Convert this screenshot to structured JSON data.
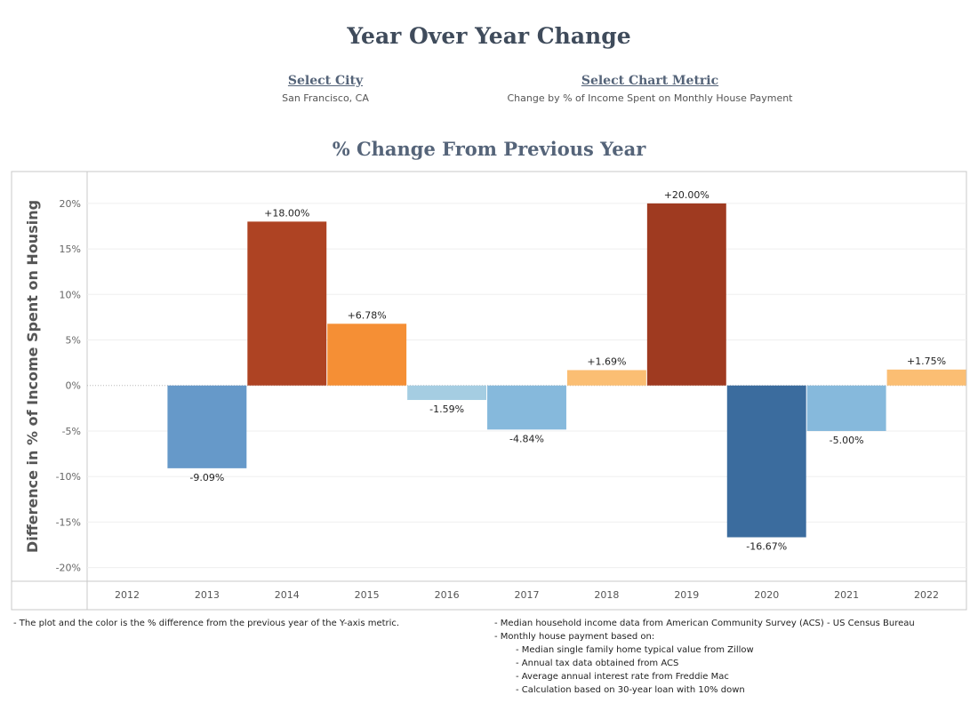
{
  "page": {
    "title": "Year Over Year Change"
  },
  "selectors": {
    "city": {
      "label": "Select City",
      "value": "San Francisco, CA"
    },
    "metric": {
      "label": "Select Chart Metric",
      "value": "Change by % of Income Spent on Monthly House Payment"
    }
  },
  "chart_data": {
    "type": "bar",
    "title": "% Change From Previous Year",
    "xlabel": "",
    "ylabel": "Difference in % of Income Spent on Housing",
    "categories": [
      "2012",
      "2013",
      "2014",
      "2015",
      "2016",
      "2017",
      "2018",
      "2019",
      "2020",
      "2021",
      "2022"
    ],
    "values": [
      null,
      -9.09,
      18.0,
      6.78,
      -1.59,
      -4.84,
      1.69,
      20.0,
      -16.67,
      -5.0,
      1.75
    ],
    "data_labels": [
      "",
      "-9.09%",
      "+18.00%",
      "+6.78%",
      "-1.59%",
      "-4.84%",
      "+1.69%",
      "+20.00%",
      "-16.67%",
      "-5.00%",
      "+1.75%"
    ],
    "colors": [
      "",
      "#6699c9",
      "#ae4323",
      "#f58f35",
      "#a5cde2",
      "#86b9dc",
      "#fbbe73",
      "#9f3a20",
      "#3b6c9e",
      "#86b9dc",
      "#fbbe73"
    ],
    "ylim": [
      -21.5,
      23.5
    ],
    "yticks": [
      20,
      15,
      10,
      5,
      0,
      -5,
      -10,
      -15,
      -20
    ],
    "ytick_labels": [
      "20%",
      "15%",
      "10%",
      "5%",
      "0%",
      "-5%",
      "-10%",
      "-15%",
      "-20%"
    ],
    "grid": true,
    "legend": "none"
  },
  "footer": {
    "left": [
      "- The plot and the color is the % difference from the previous year of the Y-axis metric."
    ],
    "right": [
      "- Median household income data from American Community Survey (ACS) - US Census Bureau",
      "- Monthly house payment based on:"
    ],
    "right_sub": [
      "- Median single family home typical value from Zillow",
      "- Annual tax data obtained from ACS",
      "- Average annual interest rate from Freddie Mac",
      "- Calculation based on 30-year loan with 10% down"
    ]
  }
}
